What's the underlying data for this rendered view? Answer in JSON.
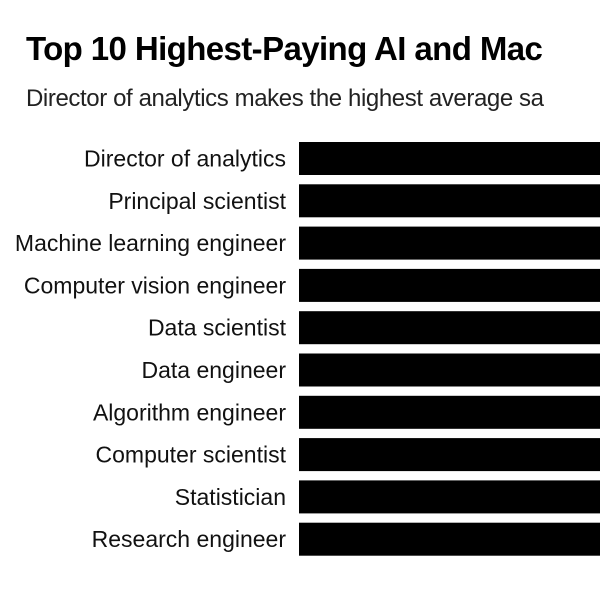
{
  "chart_data": {
    "type": "bar",
    "orientation": "horizontal",
    "title": "Top 10 Highest-Paying AI and Mac",
    "subtitle": "Director of analytics makes the highest average sa",
    "categories": [
      "Director of analytics",
      "Principal scientist",
      "Machine learning engineer",
      "Computer vision engineer",
      "Data scientist",
      "Data engineer",
      "Algorithm engineer",
      "Computer scientist",
      "Statistician",
      "Research engineer"
    ],
    "series": [
      {
        "values": [
          1,
          1,
          1,
          1,
          1,
          1,
          1,
          1,
          1,
          1
        ]
      }
    ],
    "colors": {
      "bar": "#000000",
      "text": "#111111"
    },
    "grid": false,
    "legend": "none"
  }
}
